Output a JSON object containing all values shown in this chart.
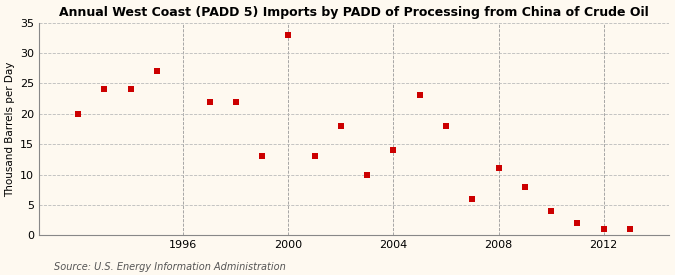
{
  "title": "Annual West Coast (PADD 5) Imports by PADD of Processing from China of Crude Oil",
  "ylabel": "Thousand Barrels per Day",
  "source": "Source: U.S. Energy Information Administration",
  "background_color": "#fef9f0",
  "plot_background_color": "#fef9f0",
  "xlim": [
    1990.5,
    2014.5
  ],
  "ylim": [
    0,
    35
  ],
  "xticks": [
    1996,
    2000,
    2004,
    2008,
    2012
  ],
  "yticks": [
    0,
    5,
    10,
    15,
    20,
    25,
    30,
    35
  ],
  "x": [
    1992,
    1993,
    1994,
    1995,
    1997,
    1998,
    1999,
    2000,
    2001,
    2002,
    2003,
    2004,
    2005,
    2006,
    2007,
    2008,
    2009,
    2010,
    2011,
    2012,
    2013
  ],
  "y": [
    20,
    24,
    24,
    27,
    22,
    22,
    13,
    33,
    13,
    18,
    10,
    14,
    23,
    18,
    6,
    11,
    8,
    4,
    2,
    1,
    1
  ],
  "marker_color": "#cc0000",
  "marker": "s",
  "marker_size": 16,
  "grid_color": "#bbbbbb",
  "grid_style": "--",
  "grid_linewidth": 0.6,
  "vline_color": "#999999",
  "vline_style": "--",
  "vline_linewidth": 0.6
}
